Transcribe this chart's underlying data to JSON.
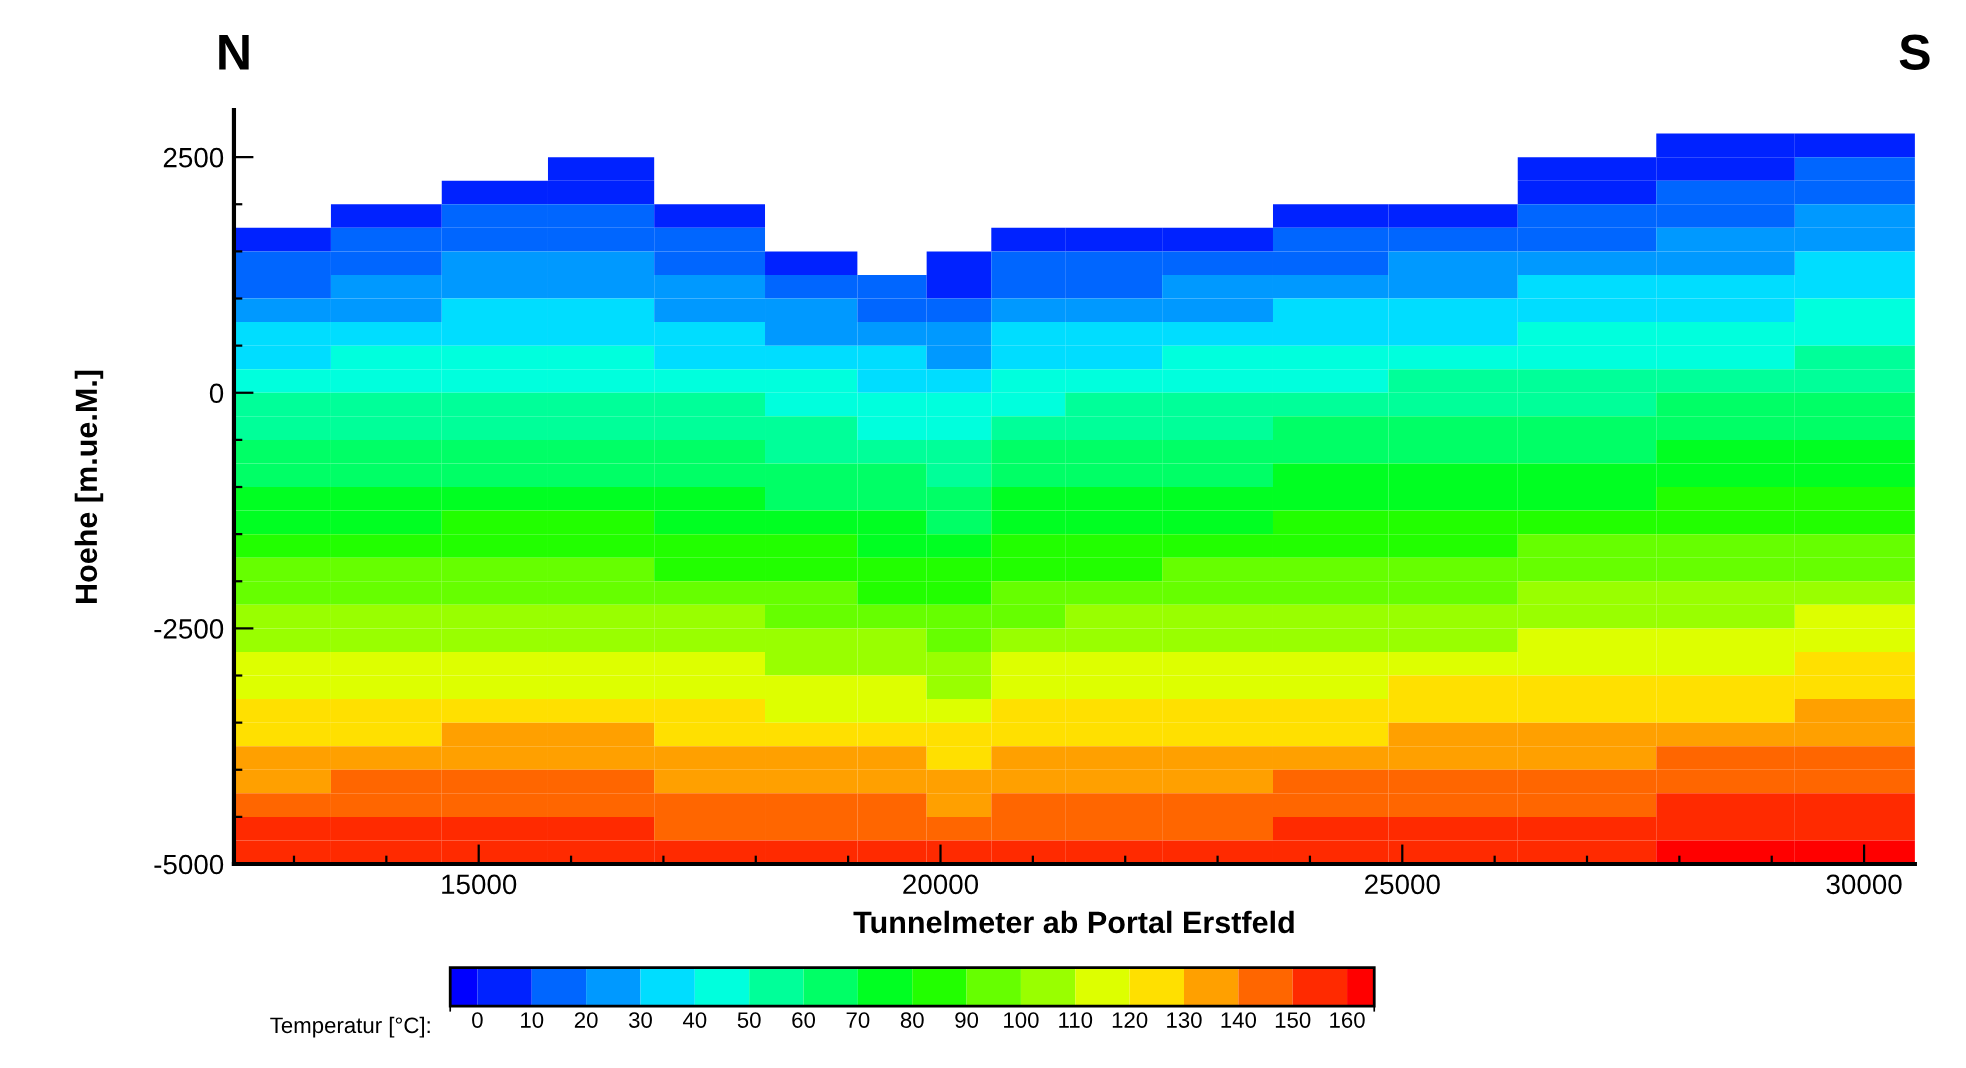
{
  "chart_data": {
    "type": "heatmap",
    "xlabel": "Tunnelmeter ab Portal Erstfeld",
    "ylabel": "Hoehe [m.ue.M.]",
    "clabel": "Temperatur [°C]:",
    "annotations": [
      "N",
      "S"
    ],
    "x": [
      12800,
      14000,
      15200,
      16300,
      17500,
      18700,
      19500,
      20200,
      20900,
      21800,
      23000,
      24200,
      25500,
      27000,
      28500,
      30000
    ],
    "y": [
      2625,
      2375,
      2125,
      1875,
      1625,
      1375,
      1125,
      875,
      625,
      375,
      125,
      -125,
      -375,
      -625,
      -875,
      -1125,
      -1375,
      -1625,
      -1875,
      -2125,
      -2375,
      -2625,
      -2875,
      -3125,
      -3375,
      -3625,
      -3875,
      -4125,
      -4375,
      -4625,
      -4875
    ],
    "cells": [
      [
        null,
        null,
        null,
        null,
        null,
        null,
        null,
        null,
        null,
        null,
        null,
        null,
        null,
        null,
        2,
        6
      ],
      [
        null,
        null,
        null,
        4,
        null,
        null,
        null,
        null,
        null,
        null,
        null,
        null,
        null,
        2,
        7,
        11
      ],
      [
        null,
        null,
        6,
        7,
        null,
        null,
        null,
        null,
        null,
        null,
        null,
        null,
        null,
        8,
        13,
        16
      ],
      [
        null,
        6,
        11,
        12,
        6,
        null,
        null,
        null,
        null,
        null,
        null,
        6,
        9,
        13,
        18,
        21
      ],
      [
        5,
        12,
        16,
        17,
        11,
        null,
        null,
        null,
        8,
        4,
        9,
        12,
        15,
        19,
        23,
        26
      ],
      [
        12,
        17,
        21,
        21,
        17,
        8,
        null,
        3,
        13,
        11,
        15,
        18,
        21,
        24,
        28,
        31
      ],
      [
        18,
        23,
        27,
        26,
        22,
        14,
        11,
        8,
        18,
        17,
        22,
        25,
        26,
        30,
        33,
        36
      ],
      [
        25,
        29,
        32,
        32,
        28,
        21,
        18,
        13,
        25,
        24,
        28,
        31,
        32,
        36,
        39,
        41
      ],
      [
        32,
        35,
        37,
        37,
        33,
        28,
        24,
        20,
        31,
        31,
        34,
        37,
        38,
        41,
        44,
        46
      ],
      [
        38,
        40,
        42,
        43,
        39,
        34,
        30,
        26,
        38,
        38,
        41,
        43,
        44,
        47,
        49,
        51
      ],
      [
        45,
        46,
        47,
        48,
        44,
        41,
        37,
        33,
        44,
        44,
        47,
        49,
        50,
        52,
        54,
        56
      ],
      [
        51,
        52,
        53,
        53,
        50,
        47,
        43,
        40,
        49,
        50,
        53,
        55,
        56,
        58,
        60,
        62
      ],
      [
        56,
        57,
        58,
        58,
        55,
        52,
        49,
        46,
        54,
        55,
        58,
        60,
        61,
        63,
        65,
        67
      ],
      [
        62,
        63,
        63,
        64,
        61,
        58,
        54,
        51,
        60,
        61,
        63,
        65,
        66,
        68,
        70,
        72
      ],
      [
        67,
        68,
        69,
        69,
        66,
        63,
        60,
        57,
        65,
        66,
        69,
        71,
        72,
        74,
        76,
        78
      ],
      [
        73,
        74,
        74,
        75,
        72,
        69,
        66,
        63,
        71,
        72,
        74,
        76,
        77,
        79,
        81,
        83
      ],
      [
        78,
        79,
        80,
        80,
        77,
        74,
        72,
        69,
        76,
        77,
        79,
        81,
        82,
        84,
        86,
        88
      ],
      [
        84,
        85,
        85,
        86,
        83,
        80,
        78,
        75,
        82,
        83,
        85,
        87,
        88,
        90,
        92,
        94
      ],
      [
        90,
        91,
        91,
        92,
        89,
        86,
        84,
        81,
        88,
        89,
        90,
        92,
        93,
        95,
        97,
        99
      ],
      [
        95,
        96,
        97,
        97,
        94,
        91,
        89,
        86,
        93,
        94,
        95,
        97,
        98,
        100,
        102,
        104
      ],
      [
        101,
        102,
        102,
        103,
        100,
        97,
        95,
        92,
        99,
        100,
        101,
        103,
        104,
        106,
        108,
        110
      ],
      [
        106,
        107,
        108,
        108,
        105,
        102,
        101,
        98,
        104,
        105,
        106,
        108,
        109,
        111,
        113,
        115
      ],
      [
        112,
        113,
        113,
        114,
        111,
        108,
        107,
        104,
        110,
        111,
        111,
        113,
        114,
        116,
        118,
        120
      ],
      [
        117,
        118,
        119,
        119,
        116,
        113,
        112,
        109,
        115,
        116,
        117,
        119,
        120,
        122,
        124,
        126
      ],
      [
        123,
        124,
        124,
        125,
        122,
        119,
        118,
        115,
        121,
        122,
        122,
        124,
        125,
        127,
        129,
        131
      ],
      [
        128,
        129,
        130,
        130,
        127,
        124,
        124,
        121,
        126,
        127,
        127,
        129,
        130,
        132,
        134,
        136
      ],
      [
        134,
        135,
        135,
        136,
        133,
        130,
        130,
        127,
        132,
        133,
        133,
        135,
        136,
        138,
        140,
        142
      ],
      [
        139,
        140,
        141,
        141,
        138,
        135,
        136,
        133,
        137,
        138,
        138,
        140,
        141,
        143,
        145,
        147
      ],
      [
        145,
        146,
        146,
        147,
        144,
        141,
        141,
        138,
        143,
        144,
        143,
        145,
        146,
        148,
        150,
        152
      ],
      [
        150,
        151,
        152,
        152,
        149,
        146,
        147,
        144,
        148,
        149,
        149,
        151,
        152,
        154,
        156,
        158
      ],
      [
        156,
        157,
        157,
        158,
        155,
        152,
        153,
        150,
        154,
        155,
        154,
        156,
        157,
        159,
        161,
        163
      ]
    ],
    "colors": [
      "#0000ff",
      "#0022ff",
      "#0066ff",
      "#0099ff",
      "#00ddff",
      "#00ffdd",
      "#00ff99",
      "#00ff66",
      "#00ff22",
      "#22ff00",
      "#66ff00",
      "#99ff00",
      "#ddff00",
      "#ffe000",
      "#ffa000",
      "#ff6600",
      "#ff2a00",
      "#ff0000"
    ],
    "clim": [
      -5,
      165
    ],
    "cticks": [
      0,
      10,
      20,
      30,
      40,
      50,
      60,
      70,
      80,
      90,
      100,
      110,
      120,
      130,
      140,
      150,
      160
    ],
    "xlim": [
      12350,
      30550
    ],
    "ylim": [
      -5000,
      3000
    ],
    "xticks": [
      {
        "value": 13000,
        "label": null
      },
      {
        "value": 14000,
        "label": null
      },
      15000,
      {
        "value": 16000,
        "label": null
      },
      {
        "value": 17000,
        "label": null
      },
      {
        "value": 18000,
        "label": null
      },
      {
        "value": 19000,
        "label": null
      },
      20000,
      {
        "value": 21000,
        "label": null
      },
      {
        "value": 22000,
        "label": null
      },
      {
        "value": 23000,
        "label": null
      },
      {
        "value": 24000,
        "label": null
      },
      25000,
      {
        "value": 26000,
        "label": null
      },
      {
        "value": 27000,
        "label": null
      },
      {
        "value": 28000,
        "label": null
      },
      {
        "value": 29000,
        "label": null
      },
      30000
    ],
    "yticks": [
      -5000,
      {
        "value": -4500,
        "label": null
      },
      {
        "value": -4000,
        "label": null
      },
      {
        "value": -3500,
        "label": null
      },
      {
        "value": -3000,
        "label": null
      },
      -2500,
      {
        "value": -2000,
        "label": null
      },
      {
        "value": -1500,
        "label": null
      },
      {
        "value": -1000,
        "label": null
      },
      {
        "value": -500,
        "label": null
      },
      0,
      {
        "value": 500,
        "label": null
      },
      {
        "value": 1000,
        "label": null
      },
      {
        "value": 1500,
        "label": null
      },
      {
        "value": 2000,
        "label": null
      },
      2500
    ]
  }
}
